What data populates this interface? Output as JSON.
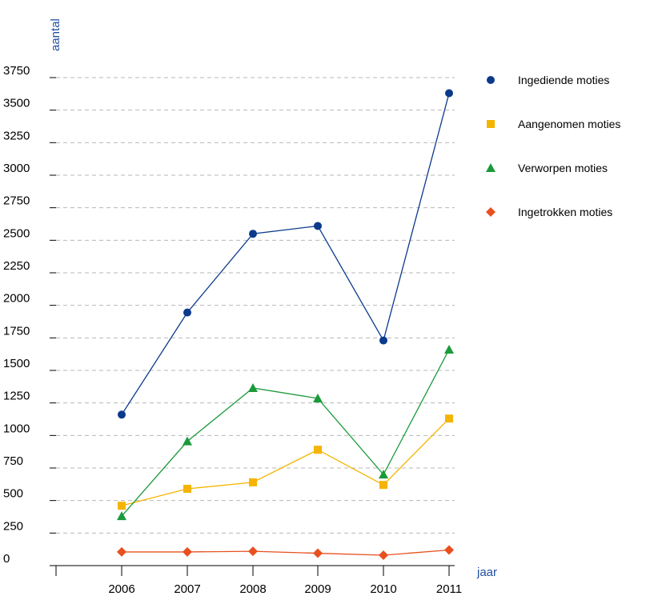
{
  "chart_data": {
    "type": "line",
    "ylabel": "aantal",
    "xlabel": "jaar",
    "categories": [
      "2006",
      "2007",
      "2008",
      "2009",
      "2010",
      "2011"
    ],
    "ylim": [
      0,
      3750
    ],
    "yticks": [
      0,
      250,
      500,
      750,
      1000,
      1250,
      1500,
      1750,
      2000,
      2250,
      2500,
      2750,
      3000,
      3250,
      3500,
      3750
    ],
    "grid": true,
    "legend_position": "right",
    "series": [
      {
        "name": "Ingediende moties",
        "marker": "circle",
        "color": "#0b3a8c",
        "values": [
          1160,
          1945,
          2550,
          2610,
          1730,
          3630
        ]
      },
      {
        "name": "Aangenomen moties",
        "marker": "square",
        "color": "#f4b400",
        "values": [
          460,
          590,
          640,
          890,
          620,
          1130
        ]
      },
      {
        "name": "Verworpen moties",
        "marker": "triangle",
        "color": "#1a9a3a",
        "values": [
          380,
          955,
          1365,
          1285,
          700,
          1660
        ]
      },
      {
        "name": "Ingetrokken moties",
        "marker": "diamond",
        "color": "#e8501f",
        "values": [
          105,
          105,
          110,
          95,
          80,
          120
        ]
      }
    ]
  }
}
